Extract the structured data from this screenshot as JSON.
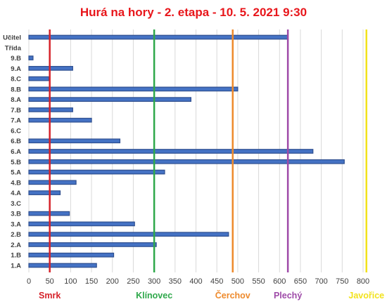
{
  "chart_data": {
    "type": "bar",
    "orientation": "horizontal",
    "title": "Hurá na hory - 2. etapa - 10. 5. 2021 9:30",
    "categories": [
      "Učitel",
      "Třída",
      "9.B",
      "9.A",
      "8.C",
      "8.B",
      "8.A",
      "7.B",
      "7.A",
      "6.C",
      "6.B",
      "6.A",
      "5.B",
      "5.A",
      "4.B",
      "4.A",
      "3.C",
      "3.B",
      "3.A",
      "2.B",
      "2.A",
      "1.B",
      "1.A"
    ],
    "values": [
      620,
      0,
      10,
      105,
      48,
      500,
      388,
      105,
      150,
      0,
      218,
      680,
      755,
      325,
      113,
      75,
      0,
      97,
      253,
      478,
      305,
      203,
      162
    ],
    "xlim": [
      0,
      800
    ],
    "xticks": [
      "0",
      "50",
      "100",
      "150",
      "200",
      "250",
      "300",
      "350",
      "400",
      "450",
      "500",
      "550",
      "600",
      "650",
      "700",
      "750",
      "800"
    ],
    "grid": true,
    "bar_color": "#2f4f8f",
    "reference_lines": [
      {
        "name": "Smrk",
        "value": 50,
        "color": "#d6222a"
      },
      {
        "name": "Klínovec",
        "value": 300,
        "color": "#2ea84a"
      },
      {
        "name": "Čerchov",
        "value": 488,
        "color": "#ee8a2c"
      },
      {
        "name": "Plechý",
        "value": 620,
        "color": "#9e4aa8"
      },
      {
        "name": "Javořice",
        "value": 808,
        "color": "#f2e21c"
      }
    ]
  }
}
